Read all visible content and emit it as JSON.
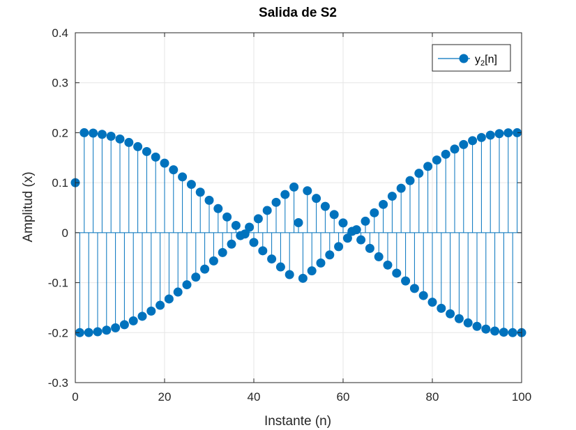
{
  "chart_data": {
    "type": "stem",
    "title": "Salida de S2",
    "xlabel": "Instante (n)",
    "ylabel": "Amplitud (x)",
    "xlim": [
      0,
      100
    ],
    "ylim": [
      -0.3,
      0.4
    ],
    "xticks": [
      0,
      20,
      40,
      60,
      80,
      100
    ],
    "xtick_labels": [
      "0",
      "20",
      "40",
      "60",
      "80",
      "100"
    ],
    "yticks": [
      -0.3,
      -0.2,
      -0.1,
      0,
      0.1,
      0.2,
      0.3,
      0.4
    ],
    "ytick_labels": [
      "-0.3",
      "-0.2",
      "-0.1",
      "0",
      "0.1",
      "0.2",
      "0.3",
      "0.4"
    ],
    "grid": true,
    "legend": {
      "placement": "top-right",
      "entries": [
        {
          "main": "y",
          "sub": "2",
          "suffix": "[n]"
        }
      ]
    },
    "colors": {
      "series": "#0072BD",
      "grid": "#e6e6e6",
      "axis": "#262626"
    },
    "series": [
      {
        "x": [
          0,
          1,
          2,
          3,
          4,
          5,
          6,
          7,
          8,
          9,
          10,
          11,
          12,
          13,
          14,
          15,
          16,
          17,
          18,
          19,
          20,
          21,
          22,
          23,
          24,
          25,
          26,
          27,
          28,
          29,
          30,
          31,
          32,
          33,
          34,
          35,
          36,
          37,
          38,
          39,
          40,
          41,
          42,
          43,
          44,
          45,
          46,
          47,
          48,
          49,
          50,
          51,
          52,
          53,
          54,
          55,
          56,
          57,
          58,
          59,
          60,
          61,
          62,
          63,
          64,
          65,
          66,
          67,
          68,
          69,
          70,
          71,
          72,
          73,
          74,
          75,
          76,
          77,
          78,
          79,
          80,
          81,
          82,
          83,
          84,
          85,
          86,
          87,
          88,
          89,
          90,
          91,
          92,
          93,
          94,
          95,
          96,
          97,
          98,
          99,
          100
        ],
        "y": [
          0.1,
          -0.2,
          0.2,
          -0.1998,
          0.1992,
          -0.1982,
          0.1968,
          -0.1951,
          0.1929,
          -0.1904,
          0.1874,
          -0.1841,
          0.1805,
          -0.1764,
          0.1721,
          -0.1673,
          0.1623,
          -0.1569,
          0.1513,
          -0.1453,
          0.1391,
          -0.1326,
          0.1258,
          -0.1188,
          0.1116,
          -0.1042,
          0.0966,
          -0.0889,
          0.081,
          -0.0729,
          0.0648,
          -0.0565,
          0.0482,
          -0.0398,
          0.0314,
          -0.0229,
          0.0144,
          -0.0059,
          -0.0026,
          0.011,
          -0.0195,
          0.0279,
          -0.0362,
          0.0445,
          -0.0526,
          0.0607,
          -0.0686,
          0.0764,
          -0.0839,
          0.0913,
          0.02,
          -0.0913,
          0.0839,
          -0.0764,
          0.0686,
          -0.0607,
          0.0526,
          -0.0445,
          0.0362,
          -0.0279,
          0.0195,
          -0.011,
          0.0026,
          0.0059,
          -0.0144,
          0.0229,
          -0.0314,
          0.0398,
          -0.0482,
          0.0565,
          -0.0648,
          0.0729,
          -0.081,
          0.0889,
          -0.0966,
          0.1042,
          -0.1116,
          0.1188,
          -0.1258,
          0.1326,
          -0.1391,
          0.1453,
          -0.1513,
          0.1569,
          -0.1623,
          0.1673,
          -0.1721,
          0.1764,
          -0.1805,
          0.1841,
          -0.1874,
          0.1904,
          -0.1929,
          0.1951,
          -0.1968,
          0.1982,
          -0.1992,
          0.1998,
          -0.2,
          0.2,
          -0.2
        ]
      }
    ]
  }
}
